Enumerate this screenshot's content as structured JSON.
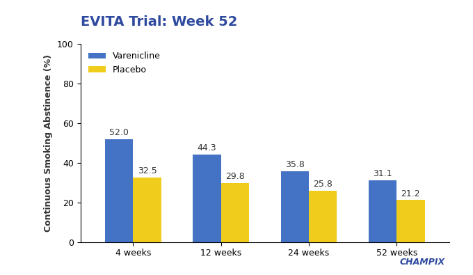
{
  "chart_data": {
    "type": "bar",
    "title": "EVITA Trial: Week 52",
    "y_label": "Continuous Smoking Abstinence (%)",
    "categories": [
      "4 weeks",
      "12 weeks",
      "24 weeks",
      "52 weeks"
    ],
    "series": [
      {
        "name": "Varenicline",
        "color": "#4472c4",
        "values": [
          52.0,
          44.3,
          35.8,
          31.1
        ],
        "value_labels": [
          "52.0",
          "44.3",
          "35.8",
          "31.1"
        ]
      },
      {
        "name": "Placebo",
        "color": "#f0cc1c",
        "values": [
          32.5,
          29.8,
          25.8,
          21.2
        ],
        "value_labels": [
          "32.5",
          "29.8",
          "25.8",
          "21.2"
        ]
      }
    ],
    "ylim": [
      0,
      100
    ],
    "yticks": [
      0,
      20,
      40,
      60,
      80,
      100
    ],
    "grid": false,
    "legend": "upper left",
    "data_labels": true,
    "annotations": [
      "CHAMPIX"
    ]
  }
}
